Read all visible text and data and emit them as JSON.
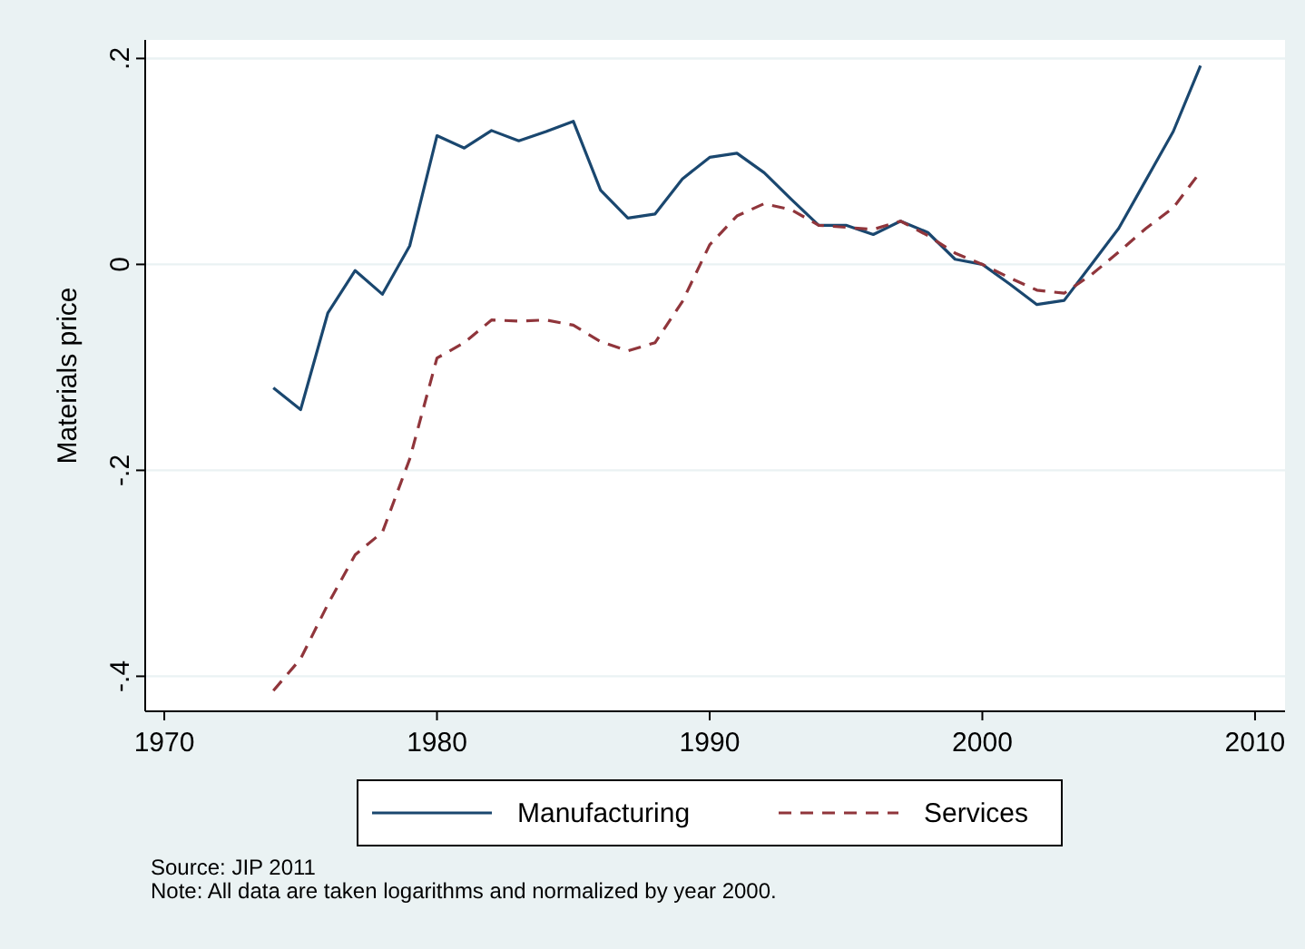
{
  "chart_data": {
    "type": "line",
    "ylabel": "Materials price",
    "x": [
      1974,
      1975,
      1976,
      1977,
      1978,
      1979,
      1980,
      1981,
      1982,
      1983,
      1984,
      1985,
      1986,
      1987,
      1988,
      1989,
      1990,
      1991,
      1992,
      1993,
      1994,
      1995,
      1996,
      1997,
      1998,
      1999,
      2000,
      2001,
      2002,
      2003,
      2004,
      2005,
      2006,
      2007,
      2008
    ],
    "series": [
      {
        "name": "Manufacturing",
        "color": "#1a476f",
        "line_style": "solid",
        "values": [
          -0.12,
          -0.141,
          -0.047,
          -0.006,
          -0.029,
          0.018,
          0.125,
          0.113,
          0.13,
          0.12,
          0.129,
          0.139,
          0.072,
          0.045,
          0.049,
          0.083,
          0.104,
          0.108,
          0.089,
          0.063,
          0.038,
          0.038,
          0.029,
          0.042,
          0.031,
          0.005,
          0.0,
          -0.019,
          -0.039,
          -0.035,
          0.0,
          0.035,
          0.082,
          0.129,
          0.193
        ]
      },
      {
        "name": "Services",
        "color": "#90353b",
        "line_style": "dashed",
        "values": [
          -0.414,
          -0.383,
          -0.33,
          -0.282,
          -0.26,
          -0.189,
          -0.091,
          -0.076,
          -0.054,
          -0.055,
          -0.054,
          -0.059,
          -0.075,
          -0.084,
          -0.076,
          -0.036,
          0.019,
          0.047,
          0.059,
          0.053,
          0.038,
          0.036,
          0.034,
          0.042,
          0.028,
          0.011,
          0.0,
          -0.013,
          -0.025,
          -0.028,
          -0.01,
          0.012,
          0.035,
          0.055,
          0.09
        ]
      }
    ],
    "xlim": [
      1969.3,
      2011.1
    ],
    "xticks": [
      1970,
      1980,
      1990,
      2000,
      2010
    ],
    "ylim": [
      -0.434,
      0.218
    ],
    "yticks": [
      {
        "value": -0.4,
        "label": "-.4"
      },
      {
        "value": -0.2,
        "label": "-.2"
      },
      {
        "value": 0,
        "label": "0"
      },
      {
        "value": 0.2,
        "label": ".2"
      }
    ],
    "grid": "y",
    "legend": "bottom",
    "marker": "none",
    "annotations": [
      "Source: JIP 2011",
      "Note: All data are taken logarithms and normalized by year 2000."
    ]
  }
}
